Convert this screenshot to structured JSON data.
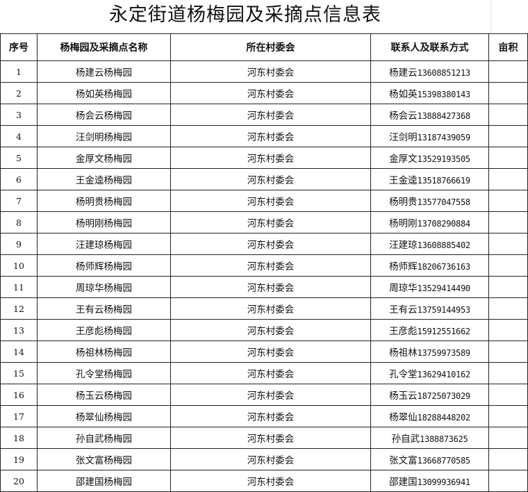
{
  "title": "永定街道杨梅园及采摘点信息表",
  "headers": [
    "序号",
    "杨梅园及采摘点名称",
    "所在村委会",
    "联系人及联系方式",
    "亩积"
  ],
  "rows": [
    {
      "no": "1",
      "name": "杨建云杨梅园",
      "village": "河东村委会",
      "contact": "杨建云",
      "phone": "13608851213",
      "area": ""
    },
    {
      "no": "2",
      "name": "杨如英杨梅园",
      "village": "河东村委会",
      "contact": "杨如英",
      "phone": "15398380143",
      "area": ""
    },
    {
      "no": "3",
      "name": "杨会云杨梅园",
      "village": "河东村委会",
      "contact": "杨会云",
      "phone": "13888427368",
      "area": ""
    },
    {
      "no": "4",
      "name": "汪剑明杨梅园",
      "village": "河东村委会",
      "contact": "汪剑明",
      "phone": "13187439059",
      "area": ""
    },
    {
      "no": "5",
      "name": "金厚文杨梅园",
      "village": "河东村委会",
      "contact": "金厚文",
      "phone": "13529193505",
      "area": ""
    },
    {
      "no": "6",
      "name": "王金逵杨梅园",
      "village": "河东村委会",
      "contact": "王金逵",
      "phone": "13518766619",
      "area": ""
    },
    {
      "no": "7",
      "name": "杨明贵杨梅园",
      "village": "河东村委会",
      "contact": "杨明贵",
      "phone": "13577047558",
      "area": ""
    },
    {
      "no": "8",
      "name": "杨明刚杨梅园",
      "village": "河东村委会",
      "contact": "杨明刚",
      "phone": "13708290884",
      "area": ""
    },
    {
      "no": "9",
      "name": "汪建琼杨梅园",
      "village": "河东村委会",
      "contact": "汪建琼",
      "phone": "13608885402",
      "area": ""
    },
    {
      "no": "10",
      "name": "杨师辉杨梅园",
      "village": "河东村委会",
      "contact": "杨师辉",
      "phone": "18206736163",
      "area": ""
    },
    {
      "no": "11",
      "name": "周琼华杨梅园",
      "village": "河东村委会",
      "contact": "周琼华",
      "phone": "13529414490",
      "area": ""
    },
    {
      "no": "12",
      "name": "王有云杨梅园",
      "village": "河东村委会",
      "contact": "王有云",
      "phone": "13759144953",
      "area": ""
    },
    {
      "no": "13",
      "name": "王彦彪杨梅园",
      "village": "河东村委会",
      "contact": "王彦彪",
      "phone": "15912551662",
      "area": ""
    },
    {
      "no": "14",
      "name": "杨祖林杨梅园",
      "village": "河东村委会",
      "contact": "杨祖林",
      "phone": "13759973589",
      "area": ""
    },
    {
      "no": "15",
      "name": "孔令堂杨梅园",
      "village": "河东村委会",
      "contact": "孔令堂",
      "phone": "13629410162",
      "area": ""
    },
    {
      "no": "16",
      "name": "杨玉云杨梅园",
      "village": "河东村委会",
      "contact": "杨玉云",
      "phone": "18725073029",
      "area": ""
    },
    {
      "no": "17",
      "name": "杨翠仙杨梅园",
      "village": "河东村委会",
      "contact": "杨翠仙",
      "phone": "18288448202",
      "area": ""
    },
    {
      "no": "18",
      "name": "孙自武杨梅园",
      "village": "河东村委会",
      "contact": "孙自武",
      "phone": "1388873625",
      "area": ""
    },
    {
      "no": "19",
      "name": "张文富杨梅园",
      "village": "河东村委会",
      "contact": "张文富",
      "phone": "13668770585",
      "area": ""
    },
    {
      "no": "20",
      "name": "邵建国杨梅园",
      "village": "河东村委会",
      "contact": "邵建国",
      "phone": "13099936941",
      "area": ""
    }
  ]
}
